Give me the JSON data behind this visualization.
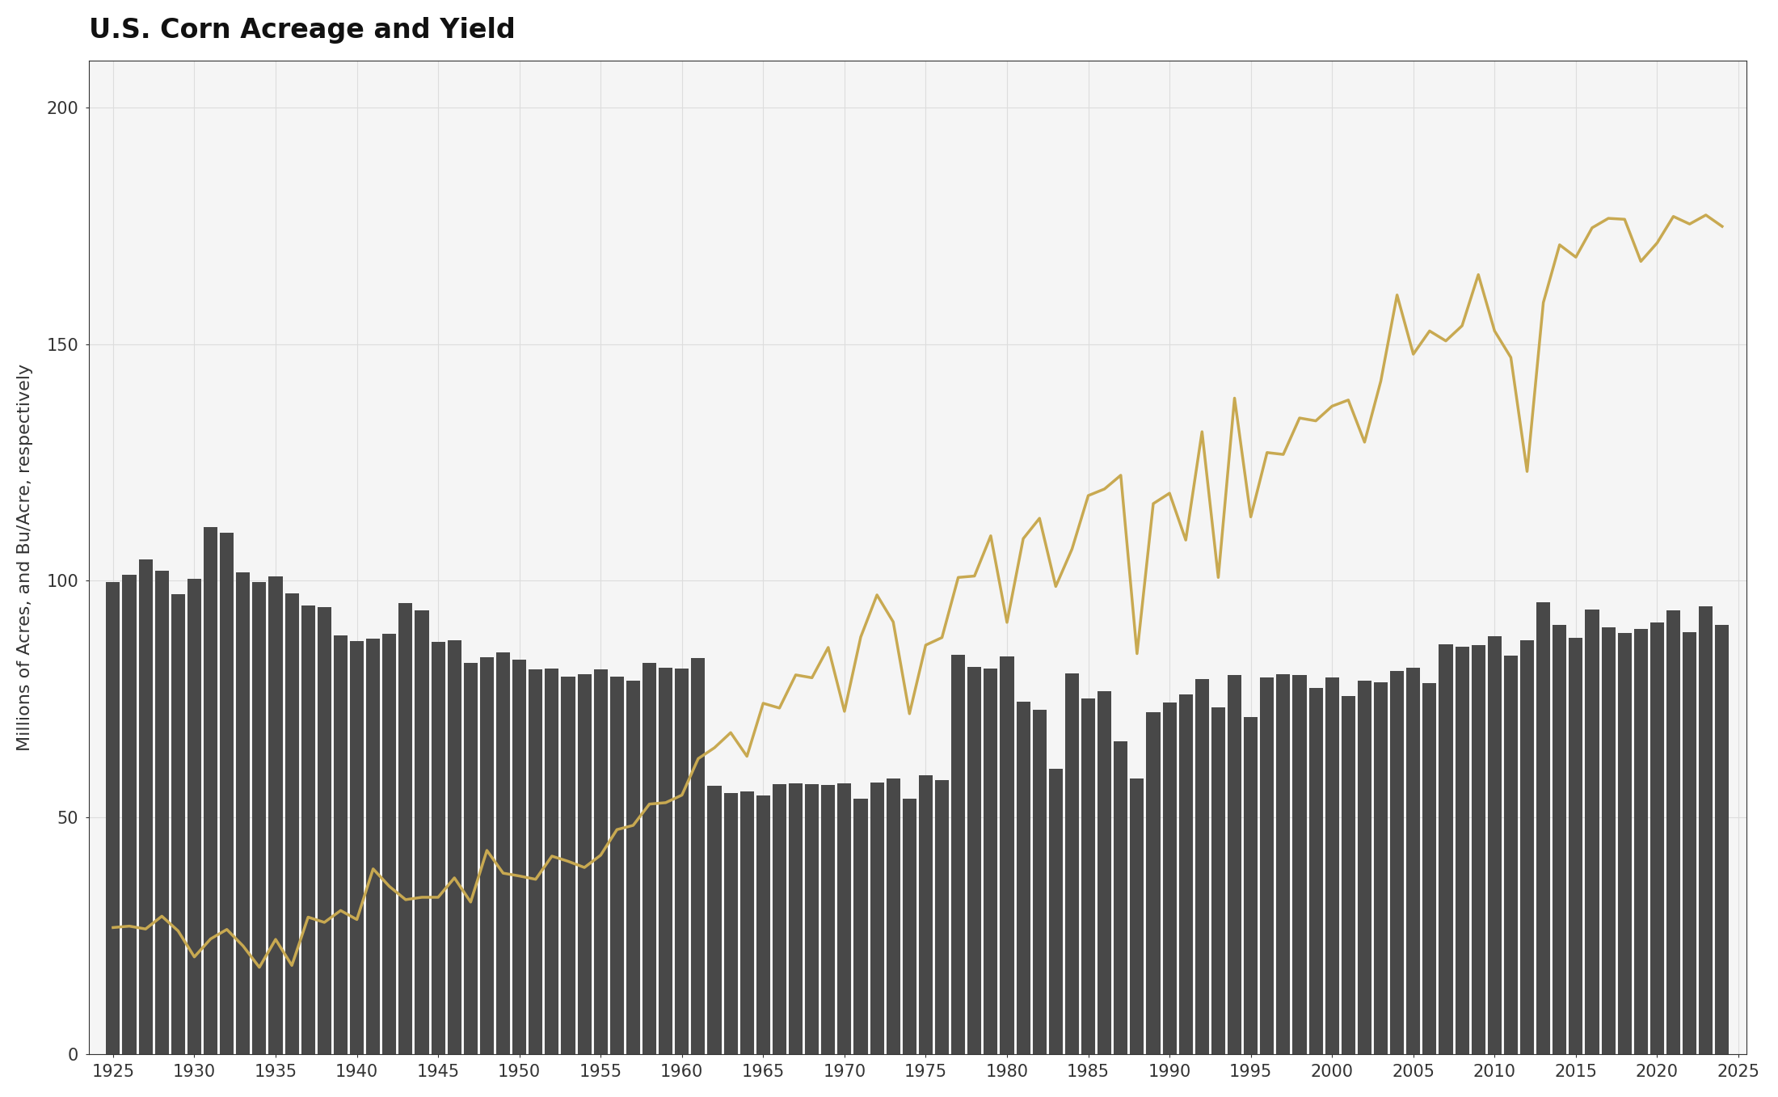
{
  "title": "U.S. Corn Acreage and Yield",
  "ylabel": "Millions of Acres, and Bu/Acre, respectively",
  "background_color": "#ffffff",
  "plot_bg_color": "#f5f5f5",
  "bar_color": "#484848",
  "line_color": "#C8A951",
  "years": [
    1925,
    1926,
    1927,
    1928,
    1929,
    1930,
    1931,
    1932,
    1933,
    1934,
    1935,
    1936,
    1937,
    1938,
    1939,
    1940,
    1941,
    1942,
    1943,
    1944,
    1945,
    1946,
    1947,
    1948,
    1949,
    1950,
    1951,
    1952,
    1953,
    1954,
    1955,
    1956,
    1957,
    1958,
    1959,
    1960,
    1961,
    1962,
    1963,
    1964,
    1965,
    1966,
    1967,
    1968,
    1969,
    1970,
    1971,
    1972,
    1973,
    1974,
    1975,
    1976,
    1977,
    1978,
    1979,
    1980,
    1981,
    1982,
    1983,
    1984,
    1985,
    1986,
    1987,
    1988,
    1989,
    1990,
    1991,
    1992,
    1993,
    1994,
    1995,
    1996,
    1997,
    1998,
    1999,
    2000,
    2001,
    2002,
    2003,
    2004,
    2005,
    2006,
    2007,
    2008,
    2009,
    2010,
    2011,
    2012,
    2013,
    2014,
    2015,
    2016,
    2017,
    2018,
    2019,
    2020,
    2021,
    2022,
    2023,
    2024
  ],
  "acreage": [
    99.7,
    101.2,
    104.5,
    102.1,
    97.2,
    100.4,
    111.3,
    110.2,
    101.8,
    99.7,
    101.0,
    97.4,
    94.8,
    94.5,
    88.4,
    87.3,
    87.8,
    88.8,
    95.3,
    93.7,
    87.0,
    87.5,
    82.7,
    83.9,
    84.8,
    83.3,
    81.3,
    81.4,
    79.7,
    80.2,
    81.3,
    79.8,
    78.8,
    82.7,
    81.6,
    81.4,
    83.7,
    56.7,
    55.2,
    55.4,
    54.7,
    57.0,
    57.1,
    57.0,
    56.8,
    57.1,
    54.0,
    57.4,
    58.2,
    54.0,
    58.9,
    57.8,
    84.4,
    81.8,
    81.4,
    84.0,
    74.5,
    72.7,
    60.2,
    80.5,
    75.2,
    76.6,
    66.0,
    58.2,
    72.3,
    74.2,
    75.9,
    79.3,
    73.2,
    80.0,
    71.2,
    79.5,
    80.2,
    80.1,
    77.4,
    79.6,
    75.7,
    78.9,
    78.6,
    80.9,
    81.7,
    78.3,
    86.5,
    86.0,
    86.4,
    88.2,
    84.2,
    87.4,
    95.4,
    90.6,
    88.0,
    94.0,
    90.2,
    88.9,
    89.9,
    91.1,
    93.8,
    89.1,
    94.6,
    90.6
  ],
  "yield": [
    26.7,
    27.0,
    26.4,
    29.1,
    26.0,
    20.5,
    24.3,
    26.3,
    22.8,
    18.3,
    24.2,
    18.7,
    28.9,
    27.8,
    30.3,
    28.4,
    39.1,
    35.4,
    32.6,
    33.1,
    33.1,
    37.2,
    32.1,
    43.0,
    38.2,
    37.6,
    36.9,
    41.8,
    40.7,
    39.4,
    42.0,
    47.4,
    48.3,
    52.8,
    53.1,
    54.7,
    62.4,
    64.7,
    67.9,
    62.9,
    74.1,
    73.1,
    80.1,
    79.5,
    85.9,
    72.4,
    88.1,
    97.0,
    91.3,
    71.9,
    86.4,
    88.0,
    100.7,
    101.0,
    109.5,
    91.2,
    108.9,
    113.2,
    98.8,
    106.7,
    118.0,
    119.4,
    122.3,
    84.6,
    116.3,
    118.5,
    108.6,
    131.5,
    100.7,
    138.6,
    113.5,
    127.1,
    126.7,
    134.4,
    133.8,
    136.9,
    138.2,
    129.3,
    142.2,
    160.4,
    147.9,
    152.8,
    150.7,
    153.9,
    164.7,
    152.8,
    147.2,
    123.1,
    158.8,
    171.0,
    168.4,
    174.6,
    176.6,
    176.4,
    167.5,
    171.4,
    177.0,
    175.4,
    177.3,
    174.9
  ],
  "ylim": [
    0,
    210
  ],
  "yticks": [
    0,
    50,
    100,
    150,
    200
  ],
  "xticks": [
    1925,
    1930,
    1935,
    1940,
    1945,
    1950,
    1955,
    1960,
    1965,
    1970,
    1975,
    1980,
    1985,
    1990,
    1995,
    2000,
    2005,
    2010,
    2015,
    2020,
    2025
  ],
  "grid_color": "#dddddd",
  "title_fontsize": 24,
  "label_fontsize": 16,
  "tick_fontsize": 15,
  "line_width": 2.5
}
